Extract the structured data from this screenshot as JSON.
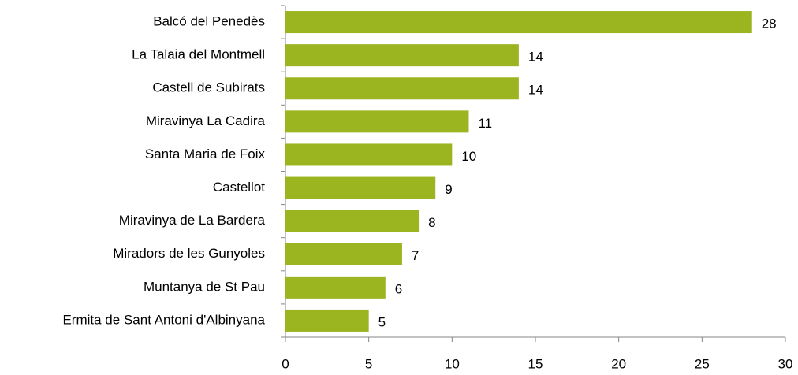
{
  "chart_data": {
    "type": "bar",
    "orientation": "horizontal",
    "categories": [
      "Balcó del Penedès",
      "La Talaia del Montmell",
      "Castell de Subirats",
      "Miravinya La Cadira",
      "Santa Maria de Foix",
      "Castellot",
      "Miravinya de La Bardera",
      "Miradors de les Gunyoles",
      "Muntanya de St Pau",
      "Ermita de Sant Antoni d'Albinyana"
    ],
    "values": [
      28,
      14,
      14,
      11,
      10,
      9,
      8,
      7,
      6,
      5
    ],
    "color": "#9bb521",
    "xlim": [
      0,
      30
    ],
    "xticks": [
      0,
      5,
      10,
      15,
      20,
      25,
      30
    ],
    "grid": false
  }
}
